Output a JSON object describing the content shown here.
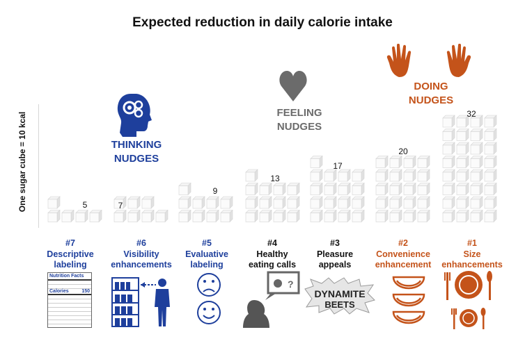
{
  "chart_data": {
    "type": "bar",
    "title": "Expected reduction in daily calorie intake",
    "ylabel": "One sugar cube = 10 kcal",
    "categories": [
      "#7 Descriptive labeling",
      "#6 Visibility enhancements",
      "#5 Evaluative labeling",
      "#4 Healthy eating calls",
      "#3 Pleasure appeals",
      "#2 Convenience enhancement",
      "#1 Size enhancements"
    ],
    "values": [
      5,
      7,
      9,
      13,
      17,
      20,
      32
    ],
    "value_labels": [
      "5",
      "7",
      "9",
      "13",
      "17",
      "20",
      "32"
    ],
    "ranks": [
      "#7",
      "#6",
      "#5",
      "#4",
      "#3",
      "#2",
      "#1"
    ],
    "names": [
      [
        "Descriptive",
        "labeling"
      ],
      [
        "Visibility",
        "enhancements"
      ],
      [
        "Evaluative",
        "labeling"
      ],
      [
        "Healthy",
        "eating calls"
      ],
      [
        "Pleasure",
        "appeals"
      ],
      [
        "Convenience",
        "enhancement"
      ],
      [
        "Size",
        "enhancements"
      ]
    ],
    "groups": [
      {
        "lines": [
          "THINKING",
          "NUDGES"
        ],
        "color": "#1e3f9c"
      },
      {
        "lines": [
          "FEELING",
          "NUDGES"
        ],
        "color": "#6b6b6b"
      },
      {
        "lines": [
          "DOING",
          "NUDGES"
        ],
        "color": "#c4531a"
      }
    ],
    "category_colors": [
      "#1e3f9c",
      "#1e3f9c",
      "#1e3f9c",
      "#111111",
      "#111111",
      "#c4531a",
      "#c4531a"
    ],
    "nutrition_label": {
      "heading": "Nutrition Facts",
      "calories_label": "Calories",
      "calories_value": "150"
    },
    "beets_text": [
      "DYNAMITE",
      "BEETS"
    ],
    "icons": [
      "gears-head-icon",
      "heart-icon",
      "hands-icon",
      "nutrition-label-icon",
      "shelf-person-icon",
      "smiley-faces-icon",
      "speech-bubble-person-icon",
      "dynamite-beets-icon",
      "melon-slices-icon",
      "plate-cutlery-icon"
    ]
  }
}
